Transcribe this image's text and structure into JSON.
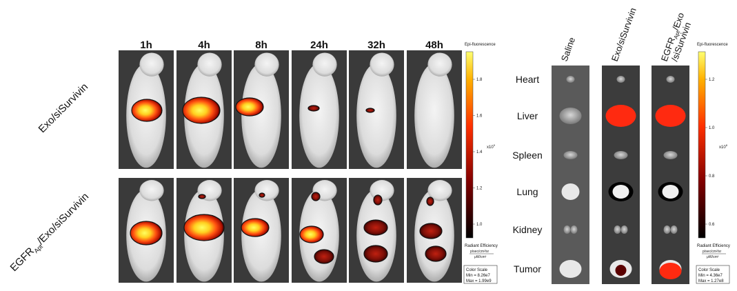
{
  "time_labels": [
    "1h",
    "4h",
    "8h",
    "24h",
    "32h",
    "48h"
  ],
  "row_labels": [
    {
      "parts": [
        "Exo/siSurvivin"
      ]
    },
    {
      "parts": [
        "EGFR",
        "Apt",
        "/Exo/siSurvivin"
      ]
    }
  ],
  "left_colorbar": {
    "title": "Epi-fluorescence",
    "ticks": [
      "1.8",
      "1.6",
      "1.4",
      "1.2",
      "1.0"
    ],
    "exponent": "x10",
    "exponent_power": "9",
    "unit_title": "Radiant Efficiency",
    "unit_num": "p/sec/cm²/sr",
    "unit_den": "μW/cm²",
    "scale_title": "Color Scale",
    "min": "Min = 8.26e7",
    "max": "Max = 1.99e9"
  },
  "organ_labels": [
    "Heart",
    "Liver",
    "Spleen",
    "Lung",
    "Kidney",
    "Tumor"
  ],
  "group_headers": [
    {
      "lines": [
        [
          "Saline"
        ]
      ]
    },
    {
      "lines": [
        [
          "Exo/siSurvivin"
        ]
      ]
    },
    {
      "lines": [
        [
          "EGFR",
          "Apt",
          "/Exo"
        ],
        [
          "/siSurvivin"
        ]
      ]
    }
  ],
  "right_colorbar": {
    "title": "Epi-fluorescence",
    "ticks": [
      "1.2",
      "1.0",
      "0.8",
      "0.6"
    ],
    "exponent": "x10",
    "exponent_power": "8",
    "unit_title": "Radiant Efficiency",
    "unit_num": "p/sec/cm²/sr",
    "unit_den": "μW/cm²",
    "scale_title": "Color Scale",
    "min": "Min = 4.36e7",
    "max": "Max = 1.27e8"
  }
}
